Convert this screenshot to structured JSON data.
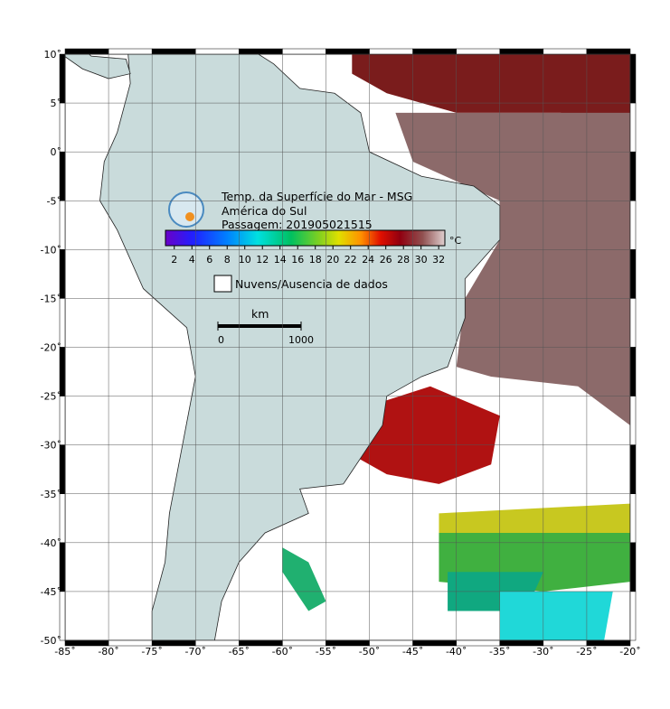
{
  "header": {
    "title": "Temp. da Superfície do Mar - MSG",
    "region": "América do Sul",
    "pass": "Passagem: 201905021515"
  },
  "colorbar": {
    "range": [
      1,
      32.7
    ],
    "ticks": [
      2,
      4,
      6,
      8,
      10,
      12,
      14,
      16,
      18,
      20,
      22,
      24,
      26,
      28,
      30,
      32
    ],
    "unit": "°C"
  },
  "legend": {
    "label": "Nuvens/Ausencia de dados"
  },
  "scale_bar": {
    "unit": "km",
    "ticks": [
      0,
      1000
    ]
  },
  "map": {
    "lon_range": [
      -85,
      -20
    ],
    "lat_range": [
      -50,
      10
    ],
    "lon_ticks": [
      {
        "value": -85,
        "label": "-85˚"
      },
      {
        "value": -80,
        "label": "-80˚"
      },
      {
        "value": -75,
        "label": "-75˚"
      },
      {
        "value": -70,
        "label": "-70˚"
      },
      {
        "value": -65,
        "label": "-65˚"
      },
      {
        "value": -60,
        "label": "-60˚"
      },
      {
        "value": -55,
        "label": "-55˚"
      },
      {
        "value": -50,
        "label": "-50˚"
      },
      {
        "value": -45,
        "label": "-45˚"
      },
      {
        "value": -40,
        "label": "-40˚"
      },
      {
        "value": -35,
        "label": "-35˚"
      },
      {
        "value": -30,
        "label": "-30˚"
      },
      {
        "value": -25,
        "label": "-25˚"
      },
      {
        "value": -20,
        "label": "-20˚"
      }
    ],
    "lat_ticks": [
      {
        "value": 10,
        "label": "10˚"
      },
      {
        "value": 5,
        "label": "5˚"
      },
      {
        "value": 0,
        "label": "0˚"
      },
      {
        "value": -5,
        "label": "-5˚"
      },
      {
        "value": -10,
        "label": "-10˚"
      },
      {
        "value": -15,
        "label": "-15˚"
      },
      {
        "value": -20,
        "label": "-20˚"
      },
      {
        "value": -25,
        "label": "-25˚"
      },
      {
        "value": -30,
        "label": "-30˚"
      },
      {
        "value": -35,
        "label": "-35˚"
      },
      {
        "value": -40,
        "label": "-40˚"
      },
      {
        "value": -45,
        "label": "-45˚"
      },
      {
        "value": -50,
        "label": "-50˚"
      }
    ]
  }
}
